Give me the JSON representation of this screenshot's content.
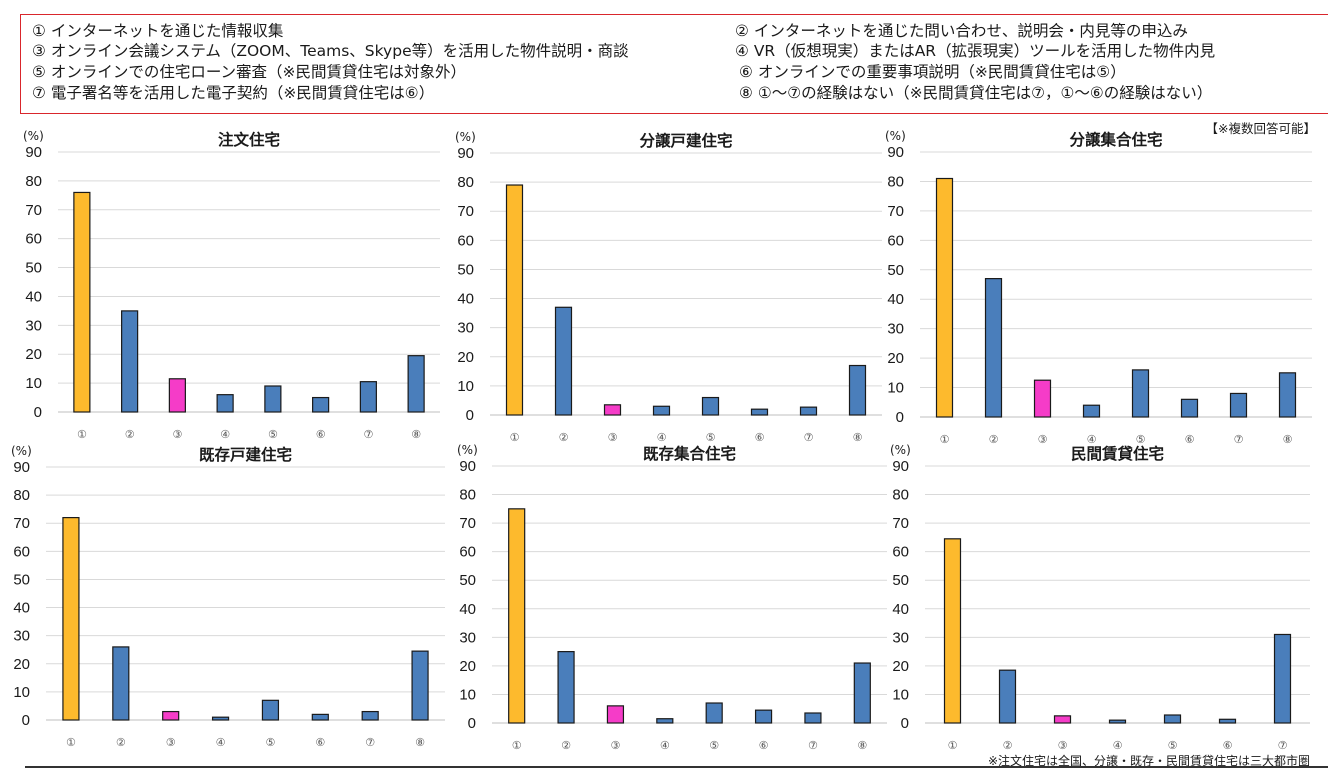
{
  "legend": {
    "items": [
      "① インターネットを通じた情報収集",
      "② インターネットを通じた問い合わせ、説明会・内見等の申込み",
      "③ オンライン会議システム（ZOOM、Teams、Skype等）を活用した物件説明・商談",
      "④ VR（仮想現実）またはAR（拡張現実）ツールを活用した物件内見",
      "⑤ オンラインでの住宅ローン審査（※民間賃貸住宅は対象外）",
      "⑥ オンラインでの重要事項説明（※民間賃貸住宅は⑤）",
      "⑦ 電子署名等を活用した電子契約（※民間賃貸住宅は⑥）",
      "⑧ ①〜⑦の経験はない（※民間賃貸住宅は⑦，①〜⑥の経験はない）"
    ]
  },
  "note_multi": "【※複数回答可能】",
  "footnote": "※注文住宅は全国、分譲・既存・民間賃貸住宅は三大都市圏",
  "colors": {
    "gold": "#FDBA2D",
    "blue": "#4A7EBB",
    "magenta": "#F53CC8",
    "grid": "#d9d9d9",
    "edge": "#1a1a1a"
  },
  "chart_data": [
    {
      "type": "bar",
      "title": "注文住宅",
      "ylabel": "(%)",
      "ylim": [
        0,
        90
      ],
      "yticks": [
        0,
        10,
        20,
        30,
        40,
        50,
        60,
        70,
        80,
        90
      ],
      "categories": [
        "①",
        "②",
        "③",
        "④",
        "⑤",
        "⑥",
        "⑦",
        "⑧"
      ],
      "values": [
        76,
        35,
        11.5,
        6,
        9,
        5,
        10.5,
        19.5
      ],
      "bar_colors": [
        "gold",
        "blue",
        "magenta",
        "blue",
        "blue",
        "blue",
        "blue",
        "blue"
      ]
    },
    {
      "type": "bar",
      "title": "分譲戸建住宅",
      "ylabel": "(%)",
      "ylim": [
        0,
        90
      ],
      "yticks": [
        0,
        10,
        20,
        30,
        40,
        50,
        60,
        70,
        80,
        90
      ],
      "categories": [
        "①",
        "②",
        "③",
        "④",
        "⑤",
        "⑥",
        "⑦",
        "⑧"
      ],
      "values": [
        79,
        37,
        3.5,
        3,
        6,
        2,
        2.7,
        17
      ],
      "bar_colors": [
        "gold",
        "blue",
        "magenta",
        "blue",
        "blue",
        "blue",
        "blue",
        "blue"
      ]
    },
    {
      "type": "bar",
      "title": "分譲集合住宅",
      "ylabel": "(%)",
      "ylim": [
        0,
        90
      ],
      "yticks": [
        0,
        10,
        20,
        30,
        40,
        50,
        60,
        70,
        80,
        90
      ],
      "categories": [
        "①",
        "②",
        "③",
        "④",
        "⑤",
        "⑥",
        "⑦",
        "⑧"
      ],
      "values": [
        81,
        47,
        12.5,
        4,
        16,
        6,
        8,
        15
      ],
      "bar_colors": [
        "gold",
        "blue",
        "magenta",
        "blue",
        "blue",
        "blue",
        "blue",
        "blue"
      ]
    },
    {
      "type": "bar",
      "title": "既存戸建住宅",
      "ylabel": "(%)",
      "ylim": [
        0,
        90
      ],
      "yticks": [
        0,
        10,
        20,
        30,
        40,
        50,
        60,
        70,
        80,
        90
      ],
      "categories": [
        "①",
        "②",
        "③",
        "④",
        "⑤",
        "⑥",
        "⑦",
        "⑧"
      ],
      "values": [
        72,
        26,
        3,
        1,
        7,
        2,
        3,
        24.5
      ],
      "bar_colors": [
        "gold",
        "blue",
        "magenta",
        "blue",
        "blue",
        "blue",
        "blue",
        "blue"
      ]
    },
    {
      "type": "bar",
      "title": "既存集合住宅",
      "ylabel": "(%)",
      "ylim": [
        0,
        90
      ],
      "yticks": [
        0,
        10,
        20,
        30,
        40,
        50,
        60,
        70,
        80,
        90
      ],
      "categories": [
        "①",
        "②",
        "③",
        "④",
        "⑤",
        "⑥",
        "⑦",
        "⑧"
      ],
      "values": [
        75,
        25,
        6,
        1.5,
        7,
        4.5,
        3.5,
        21
      ],
      "bar_colors": [
        "gold",
        "blue",
        "magenta",
        "blue",
        "blue",
        "blue",
        "blue",
        "blue"
      ]
    },
    {
      "type": "bar",
      "title": "民間賃貸住宅",
      "ylabel": "(%)",
      "ylim": [
        0,
        90
      ],
      "yticks": [
        0,
        10,
        20,
        30,
        40,
        50,
        60,
        70,
        80,
        90
      ],
      "categories": [
        "①",
        "②",
        "③",
        "④",
        "⑤",
        "⑥",
        "⑦"
      ],
      "values": [
        64.5,
        18.5,
        2.5,
        1,
        2.8,
        1.3,
        31
      ],
      "bar_colors": [
        "gold",
        "blue",
        "magenta",
        "blue",
        "blue",
        "blue",
        "blue"
      ]
    }
  ]
}
